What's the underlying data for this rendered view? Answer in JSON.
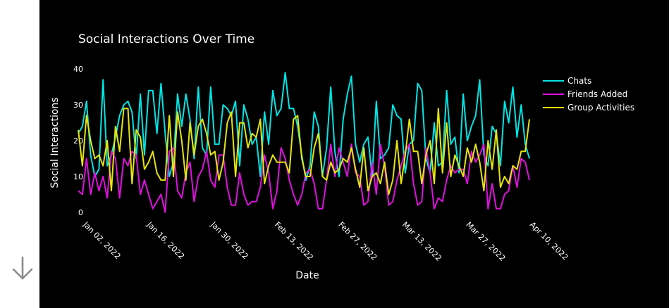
{
  "chart_data": {
    "type": "line",
    "title": "Social Interactions Over Time",
    "xlabel": "Date",
    "ylabel": "Social Interactions",
    "x_tick_labels": [
      "Jan 02, 2022",
      "Jan 16, 2022",
      "Jan 30, 2022",
      "Feb 13, 2022",
      "Feb 27, 2022",
      "Mar 13, 2022",
      "Mar 27, 2022",
      "Apr 10, 2022"
    ],
    "y_ticks": [
      0,
      10,
      20,
      30,
      40
    ],
    "xlim": [
      "2022-01-01",
      "2022-04-10"
    ],
    "ylim": [
      -1,
      42
    ],
    "legend_position": "top-right",
    "grid": false,
    "series": [
      {
        "name": "Chats",
        "color": "#00e5e5",
        "values": [
          22,
          24,
          31,
          16,
          10,
          12,
          37,
          13,
          16,
          21,
          27,
          30,
          31,
          28,
          15,
          33,
          16,
          34,
          34,
          22,
          36,
          22,
          10,
          14,
          33,
          24,
          33,
          26,
          15,
          35,
          18,
          16,
          35,
          19,
          19,
          30,
          29,
          27,
          31,
          13,
          30,
          26,
          19,
          21,
          10,
          28,
          19,
          34,
          27,
          29,
          39,
          29,
          29,
          24,
          16,
          9,
          13,
          28,
          24,
          10,
          18,
          35,
          17,
          10,
          26,
          33,
          38,
          19,
          14,
          19,
          21,
          10,
          31,
          15,
          16,
          18,
          30,
          27,
          26,
          11,
          19,
          20,
          36,
          34,
          15,
          11,
          25,
          13,
          14,
          34,
          19,
          21,
          11,
          33,
          20,
          24,
          27,
          37,
          16,
          13,
          24,
          22,
          13,
          31,
          25,
          35,
          21,
          30,
          19,
          15
        ]
      },
      {
        "name": "Friends Added",
        "color": "#e010e0",
        "values": [
          6,
          5,
          15,
          5,
          11,
          6,
          10,
          4,
          17,
          15,
          4,
          15,
          13,
          17,
          16,
          5,
          9,
          5,
          1,
          3,
          5,
          0,
          17,
          18,
          6,
          4,
          11,
          14,
          3,
          10,
          12,
          17,
          9,
          7,
          16,
          16,
          7,
          2,
          2,
          11,
          5,
          2,
          3,
          3,
          7,
          16,
          11,
          1,
          6,
          18,
          15,
          9,
          5,
          2,
          5,
          11,
          12,
          8,
          1,
          1,
          9,
          19,
          10,
          18,
          14,
          10,
          19,
          11,
          10,
          2,
          3,
          14,
          5,
          19,
          13,
          2,
          3,
          9,
          13,
          17,
          19,
          8,
          2,
          3,
          18,
          11,
          1,
          4,
          3,
          9,
          13,
          11,
          12,
          12,
          8,
          17,
          14,
          16,
          19,
          1,
          8,
          1,
          1,
          5,
          6,
          13,
          7,
          15,
          14,
          9
        ]
      },
      {
        "name": "Group Activities",
        "color": "#e5e50a",
        "values": [
          23,
          13,
          27,
          20,
          15,
          16,
          13,
          20,
          6,
          24,
          17,
          29,
          29,
          8,
          23,
          21,
          12,
          14,
          17,
          11,
          9,
          9,
          27,
          10,
          28,
          20,
          9,
          25,
          16,
          24,
          26,
          22,
          16,
          17,
          9,
          14,
          25,
          28,
          10,
          25,
          25,
          18,
          22,
          21,
          26,
          8,
          13,
          16,
          14,
          14,
          14,
          11,
          26,
          27,
          15,
          10,
          10,
          18,
          22,
          10,
          9,
          14,
          11,
          12,
          15,
          14,
          18,
          12,
          7,
          18,
          6,
          10,
          11,
          8,
          14,
          5,
          9,
          20,
          8,
          16,
          26,
          17,
          17,
          8,
          16,
          20,
          8,
          29,
          11,
          25,
          10,
          16,
          13,
          10,
          18,
          14,
          19,
          14,
          6,
          20,
          12,
          23,
          7,
          10,
          8,
          13,
          12,
          17,
          17,
          26
        ]
      }
    ]
  }
}
